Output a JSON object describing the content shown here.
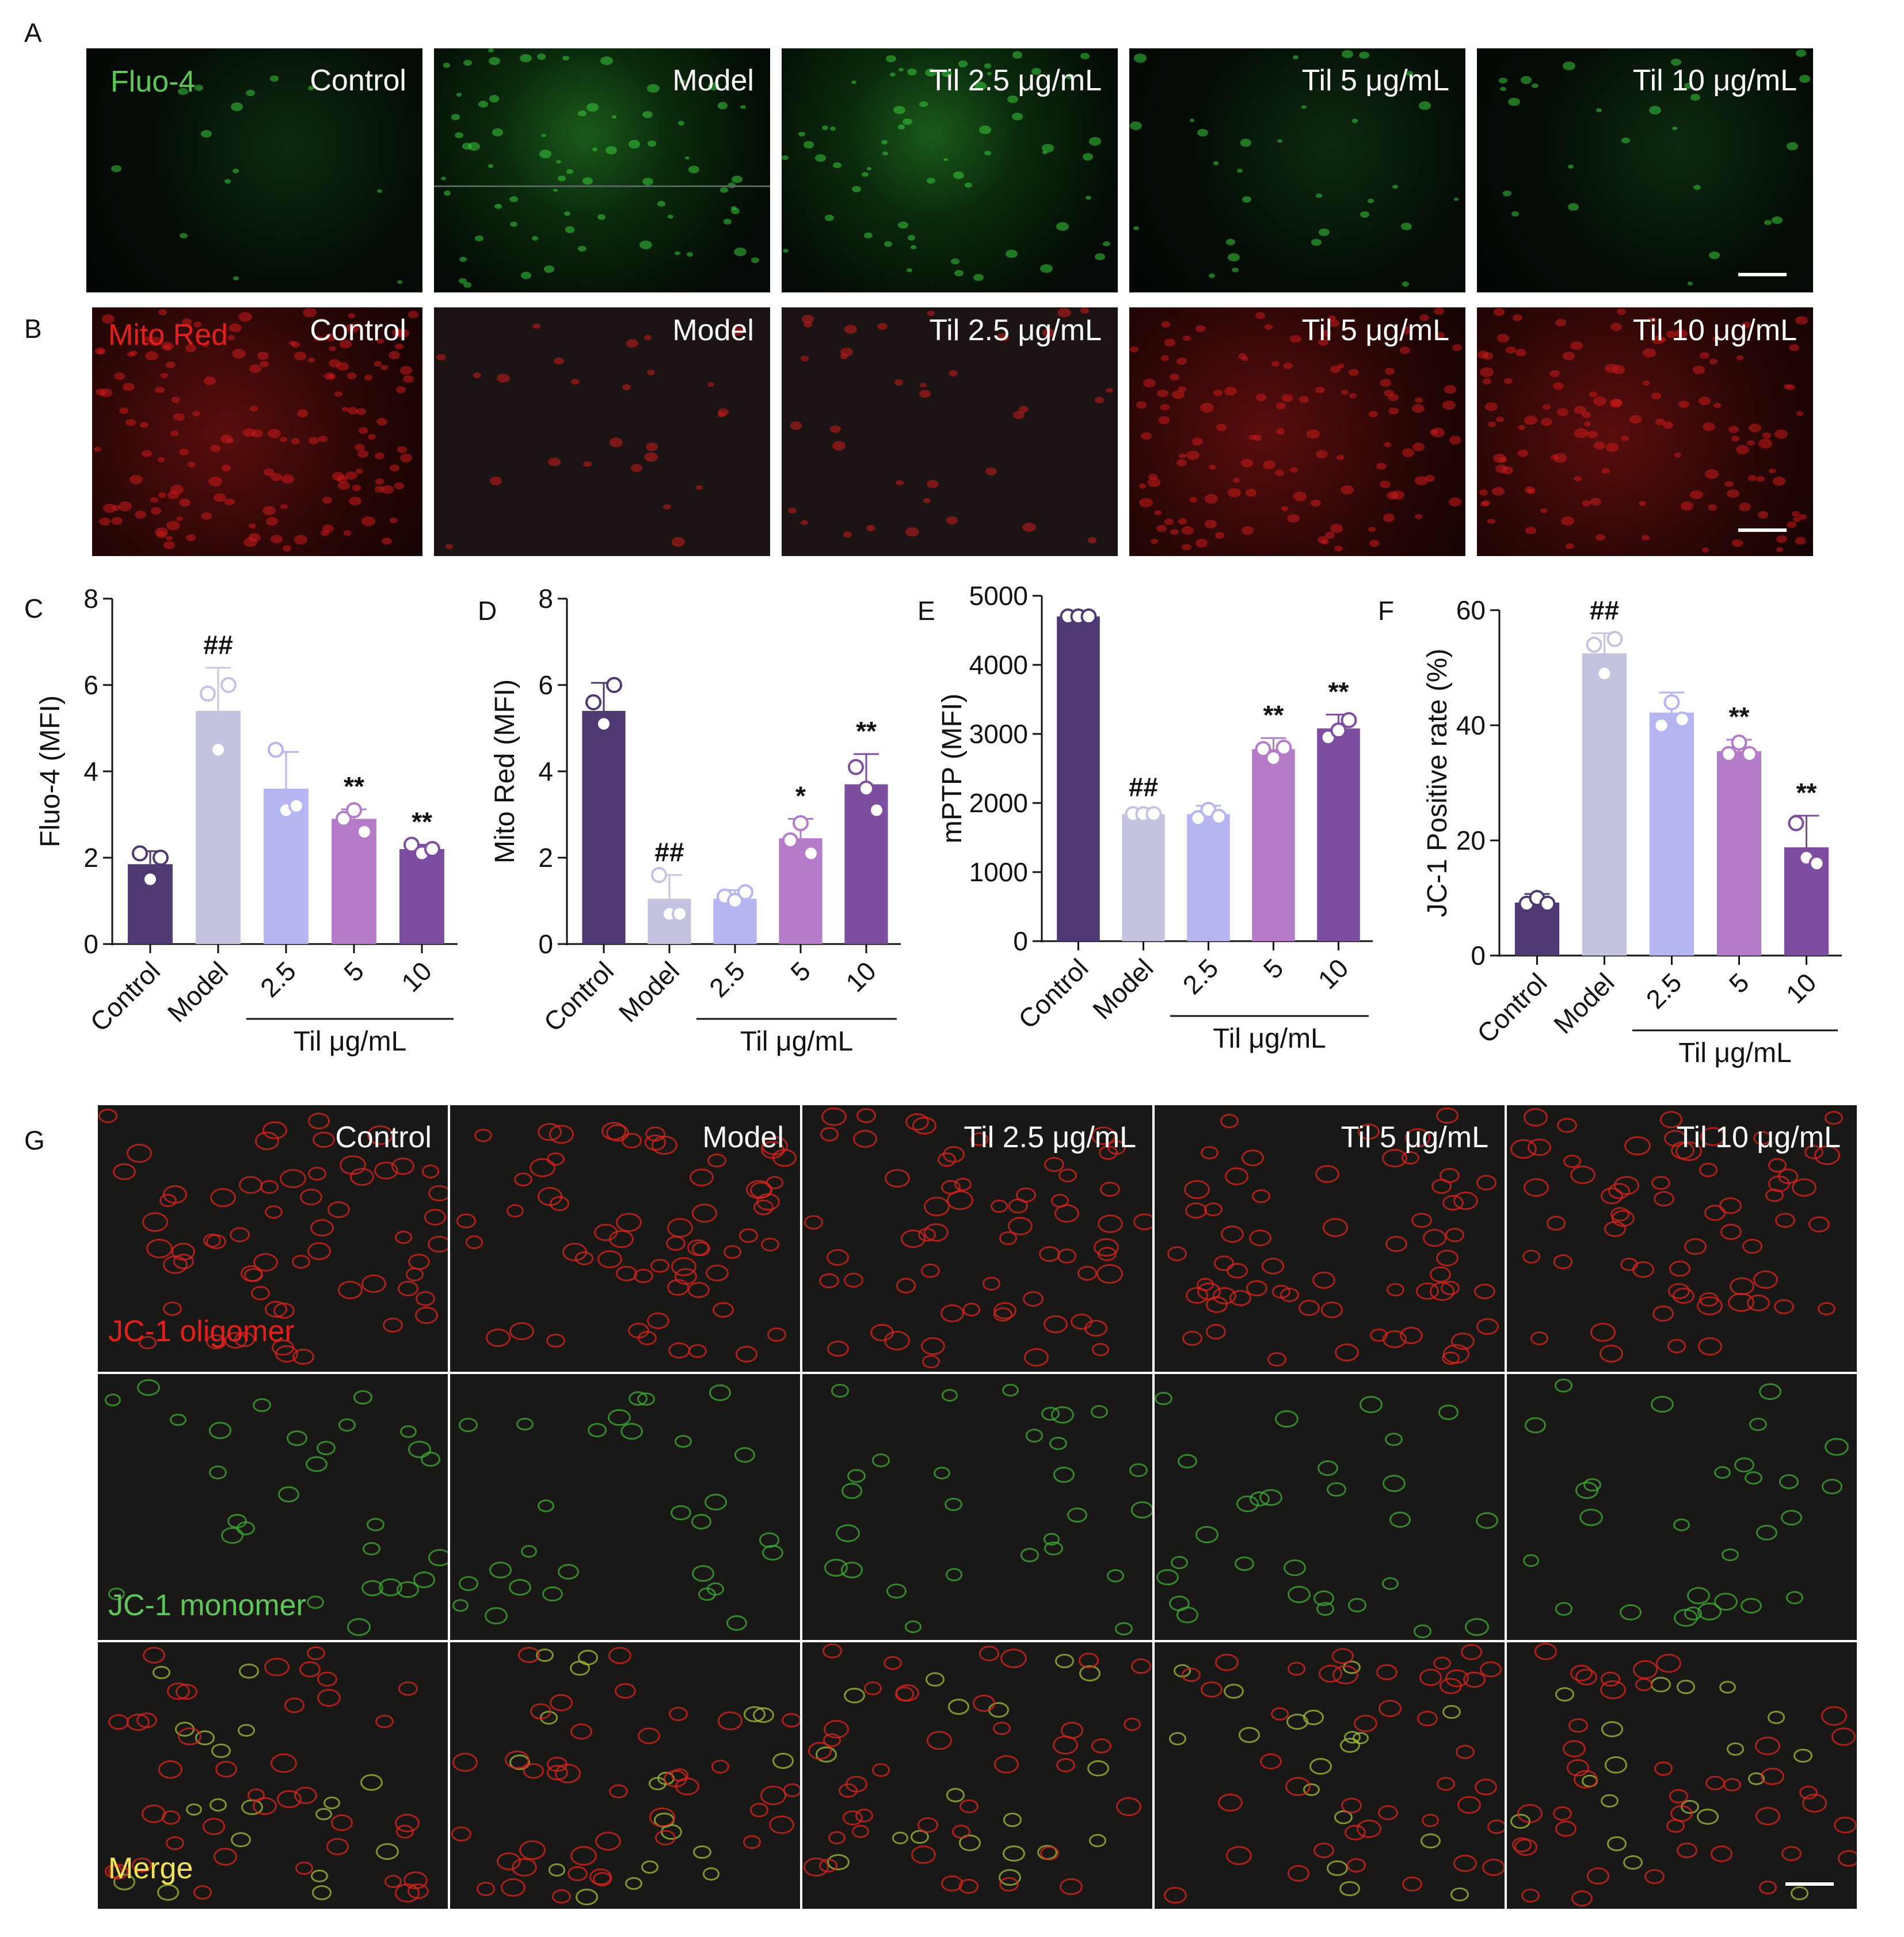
{
  "panels": {
    "A": "A",
    "B": "B",
    "C": "C",
    "D": "D",
    "E": "E",
    "F": "F",
    "G": "G"
  },
  "micro": {
    "groups": [
      "Control",
      "Model",
      "Til 2.5 μg/mL",
      "Til 5 μg/mL",
      "Til 10 μg/mL"
    ],
    "fluo_label": "Fluo-4",
    "mito_label": "Mito Red",
    "jc_oligomer": "JC-1 oligomer",
    "jc_monomer": "JC-1 monomer",
    "jc_merge": "Merge"
  },
  "colors": {
    "Control": "#4e3973",
    "Model": "#c4c4e0",
    "Til 2.5": "#b5b5f2",
    "Til 5": "#b47cc8",
    "Til 10": "#7d4ea0",
    "fluo_text": "#5fc65a",
    "mito_text": "#e0201c",
    "jc_olig_text": "#e0201c",
    "jc_mono_text": "#5fc65a",
    "merge_text": "#f0e25a"
  },
  "chart_data": [
    {
      "id": "C",
      "type": "bar",
      "categories": [
        "Control",
        "Model",
        "2.5",
        "5",
        "10"
      ],
      "group_label": "Til μg/mL",
      "values": [
        1.85,
        5.4,
        3.6,
        2.9,
        2.2
      ],
      "errors": [
        0.3,
        1.0,
        0.85,
        0.22,
        0.1
      ],
      "points": [
        [
          2.1,
          1.5,
          2.0
        ],
        [
          5.8,
          4.5,
          6.0
        ],
        [
          4.5,
          3.1,
          3.2
        ],
        [
          2.9,
          3.1,
          2.6
        ],
        [
          2.3,
          2.1,
          2.2
        ]
      ],
      "annotations": [
        "",
        "##",
        "",
        "**",
        "**"
      ],
      "ylabel": "Fluo-4 (MFI)",
      "ylim": [
        0,
        8
      ],
      "yticks": [
        0,
        2,
        4,
        6,
        8
      ]
    },
    {
      "id": "D",
      "type": "bar",
      "categories": [
        "Control",
        "Model",
        "2.5",
        "5",
        "10"
      ],
      "group_label": "Til μg/mL",
      "values": [
        5.4,
        1.05,
        1.05,
        2.45,
        3.7
      ],
      "errors": [
        0.65,
        0.55,
        0.2,
        0.45,
        0.7
      ],
      "points": [
        [
          5.6,
          5.1,
          6.0
        ],
        [
          1.6,
          0.7,
          0.7
        ],
        [
          1.1,
          1.0,
          1.2
        ],
        [
          2.4,
          2.8,
          2.1
        ],
        [
          4.1,
          3.6,
          3.1
        ]
      ],
      "annotations": [
        "",
        "##",
        "",
        "*",
        "**"
      ],
      "ylabel": "Mito Red (MFI)",
      "ylim": [
        0,
        8
      ],
      "yticks": [
        0,
        2,
        4,
        6,
        8
      ]
    },
    {
      "id": "E",
      "type": "bar",
      "categories": [
        "Control",
        "Model",
        "2.5",
        "5",
        "10"
      ],
      "group_label": "Til μg/mL",
      "values": [
        4700,
        1840,
        1840,
        2780,
        3080
      ],
      "errors": [
        80,
        60,
        120,
        160,
        200
      ],
      "points": [
        [
          4700,
          4700,
          4700
        ],
        [
          1840,
          1840,
          1840
        ],
        [
          1780,
          1900,
          1800
        ],
        [
          2780,
          2650,
          2800
        ],
        [
          2950,
          3050,
          3200
        ]
      ],
      "annotations": [
        "",
        "##",
        "",
        "**",
        "**"
      ],
      "ylabel": "mPTP (MFI)",
      "ylim": [
        0,
        5000
      ],
      "yticks": [
        0,
        1000,
        2000,
        3000,
        4000,
        5000
      ]
    },
    {
      "id": "F",
      "type": "bar",
      "categories": [
        "Control",
        "Model",
        "2.5",
        "5",
        "10"
      ],
      "group_label": "Til μg/mL",
      "values": [
        9.2,
        52.5,
        42.2,
        35.5,
        18.8
      ],
      "errors": [
        1.5,
        3.5,
        3.5,
        2.0,
        5.5
      ],
      "points": [
        [
          9,
          10,
          9
        ],
        [
          54,
          49,
          55
        ],
        [
          40,
          44,
          41
        ],
        [
          35,
          37,
          35
        ],
        [
          23,
          17,
          16
        ]
      ],
      "annotations": [
        "",
        "##",
        "",
        "**",
        "**"
      ],
      "ylabel": "JC-1 Positive rate (%)",
      "ylim": [
        0,
        60
      ],
      "yticks": [
        0,
        20,
        40,
        60
      ]
    }
  ]
}
